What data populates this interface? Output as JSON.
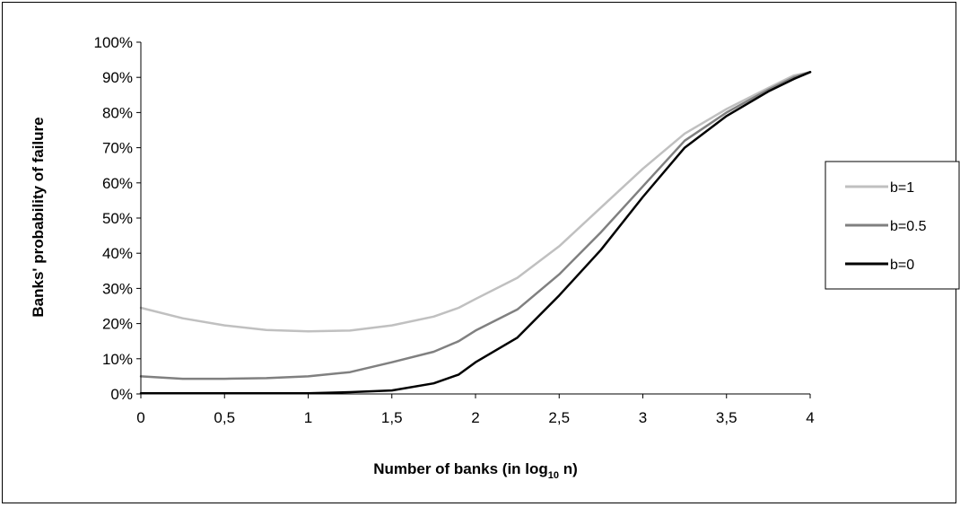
{
  "chart_data": {
    "type": "line",
    "title": "",
    "xlabel": "Number of banks (in log",
    "xlabel_sub": "10",
    "xlabel_tail": " n)",
    "ylabel": "Banks' probability of failure",
    "xlim": [
      0,
      4
    ],
    "ylim": [
      0,
      1
    ],
    "x_ticks": [
      "0",
      "0,5",
      "1",
      "1,5",
      "2",
      "2,5",
      "3",
      "3,5",
      "4"
    ],
    "y_ticks": [
      "0%",
      "10%",
      "20%",
      "30%",
      "40%",
      "50%",
      "60%",
      "70%",
      "80%",
      "90%",
      "100%"
    ],
    "grid": false,
    "legend_position": "right",
    "x": [
      0,
      0.25,
      0.5,
      0.75,
      1.0,
      1.25,
      1.5,
      1.75,
      1.9,
      2.0,
      2.25,
      2.5,
      2.75,
      3.0,
      3.25,
      3.5,
      3.75,
      3.9,
      4.0
    ],
    "series": [
      {
        "name": "b=1",
        "color": "#c0c0c0",
        "values": [
          0.245,
          0.215,
          0.195,
          0.182,
          0.178,
          0.18,
          0.195,
          0.22,
          0.245,
          0.27,
          0.33,
          0.42,
          0.53,
          0.64,
          0.74,
          0.81,
          0.87,
          0.905,
          0.915
        ]
      },
      {
        "name": "b=0.5",
        "color": "#808080",
        "values": [
          0.05,
          0.043,
          0.043,
          0.045,
          0.05,
          0.062,
          0.09,
          0.12,
          0.15,
          0.18,
          0.24,
          0.34,
          0.46,
          0.59,
          0.72,
          0.8,
          0.865,
          0.9,
          0.915
        ]
      },
      {
        "name": "b=0",
        "color": "#000000",
        "values": [
          0.002,
          0.002,
          0.002,
          0.002,
          0.002,
          0.005,
          0.01,
          0.03,
          0.055,
          0.09,
          0.16,
          0.28,
          0.41,
          0.56,
          0.7,
          0.79,
          0.86,
          0.895,
          0.915
        ]
      }
    ]
  }
}
